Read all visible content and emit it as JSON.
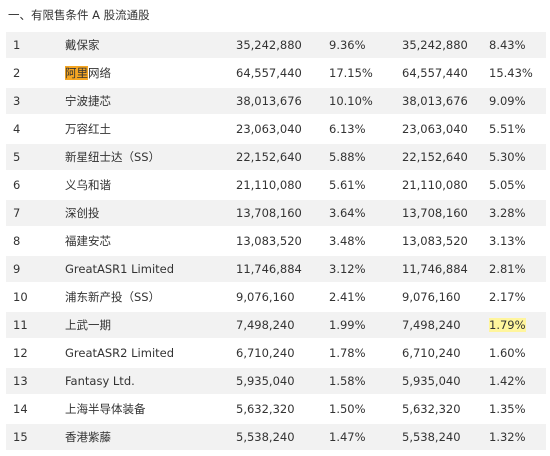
{
  "heading": "一、有限售条件 A 股流通股",
  "rows": [
    {
      "idx": "1",
      "name": "戴保家",
      "shares_before": "35,242,880",
      "pct_before": "9.36%",
      "shares_after": "35,242,880",
      "pct_after": "8.43%"
    },
    {
      "idx": "2",
      "name_highlight": "阿里",
      "name_rest": "网络",
      "shares_before": "64,557,440",
      "pct_before": "17.15%",
      "shares_after": "64,557,440",
      "pct_after": "15.43%"
    },
    {
      "idx": "3",
      "name": "宁波捷芯",
      "shares_before": "38,013,676",
      "pct_before": "10.10%",
      "shares_after": "38,013,676",
      "pct_after": "9.09%"
    },
    {
      "idx": "4",
      "name": "万容红土",
      "shares_before": "23,063,040",
      "pct_before": "6.13%",
      "shares_after": "23,063,040",
      "pct_after": "5.51%"
    },
    {
      "idx": "5",
      "name": "新星纽士达（SS）",
      "shares_before": "22,152,640",
      "pct_before": "5.88%",
      "shares_after": "22,152,640",
      "pct_after": "5.30%"
    },
    {
      "idx": "6",
      "name": "义乌和谐",
      "shares_before": "21,110,080",
      "pct_before": "5.61%",
      "shares_after": "21,110,080",
      "pct_after": "5.05%"
    },
    {
      "idx": "7",
      "name": "深创投",
      "shares_before": "13,708,160",
      "pct_before": "3.64%",
      "shares_after": "13,708,160",
      "pct_after": "3.28%"
    },
    {
      "idx": "8",
      "name": "福建安芯",
      "shares_before": "13,083,520",
      "pct_before": "3.48%",
      "shares_after": "13,083,520",
      "pct_after": "3.13%"
    },
    {
      "idx": "9",
      "name": "GreatASR1 Limited",
      "shares_before": "11,746,884",
      "pct_before": "3.12%",
      "shares_after": "11,746,884",
      "pct_after": "2.81%"
    },
    {
      "idx": "10",
      "name": "浦东新产投（SS）",
      "shares_before": "9,076,160",
      "pct_before": "2.41%",
      "shares_after": "9,076,160",
      "pct_after": "2.17%"
    },
    {
      "idx": "11",
      "name": "上武一期",
      "shares_before": "7,498,240",
      "pct_before": "1.99%",
      "shares_after": "7,498,240",
      "pct_after": "1.79%"
    },
    {
      "idx": "12",
      "name": "GreatASR2 Limited",
      "shares_before": "6,710,240",
      "pct_before": "1.78%",
      "shares_after": "6,710,240",
      "pct_after": "1.60%"
    },
    {
      "idx": "13",
      "name": "Fantasy Ltd.",
      "shares_before": "5,935,040",
      "pct_before": "1.58%",
      "shares_after": "5,935,040",
      "pct_after": "1.42%"
    },
    {
      "idx": "14",
      "name": "上海半导体装备",
      "shares_before": "5,632,320",
      "pct_before": "1.50%",
      "shares_after": "5,632,320",
      "pct_after": "1.35%"
    },
    {
      "idx": "15",
      "name": "香港紫藤",
      "shares_before": "5,538,240",
      "pct_before": "1.47%",
      "shares_after": "5,538,240",
      "pct_after": "1.32%"
    }
  ],
  "highlight_colors": {
    "name_highlight": "#f5a623",
    "cell_highlight": "#fff59d"
  }
}
